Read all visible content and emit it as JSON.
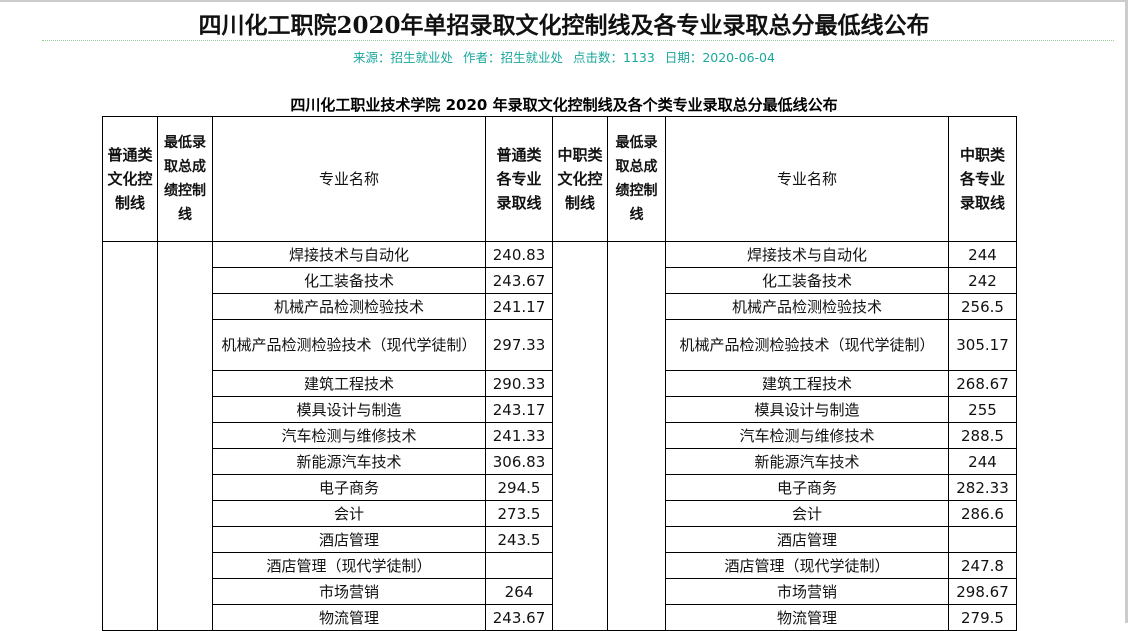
{
  "title": "四川化工职院2020年单招录取文化控制线及各专业录取总分最低线公布",
  "meta": {
    "source": "来源：招生就业处",
    "author": "作者：招生就业处",
    "clicks": "点击数：1133",
    "date": "日期：2020-06-04"
  },
  "subtitle": "四川化工职业技术学院 2020 年录取文化控制线及各个类专业录取总分最低线公布",
  "headers": [
    "普通类文化控制线",
    "最低录取总成绩控制线",
    "专业名称",
    "普通类各专业录取线",
    "中职类文化控制线",
    "最低录取总成绩控制线",
    "专业名称",
    "中职类各专业录取线"
  ],
  "rows": [
    {
      "major": "焊接技术与自动化",
      "general": "240.83",
      "vocational": "244"
    },
    {
      "major": "化工装备技术",
      "general": "243.67",
      "vocational": "242"
    },
    {
      "major": "机械产品检测检验技术",
      "general": "241.17",
      "vocational": "256.5"
    },
    {
      "major": "机械产品检测检验技术（现代学徒制）",
      "general": "297.33",
      "vocational": "305.17"
    },
    {
      "major": "建筑工程技术",
      "general": "290.33",
      "vocational": "268.67"
    },
    {
      "major": "模具设计与制造",
      "general": "243.17",
      "vocational": "255"
    },
    {
      "major": "汽车检测与维修技术",
      "general": "241.33",
      "vocational": "288.5"
    },
    {
      "major": "新能源汽车技术",
      "general": "306.83",
      "vocational": "244"
    },
    {
      "major": "电子商务",
      "general": "294.5",
      "vocational": "282.33"
    },
    {
      "major": "会计",
      "general": "273.5",
      "vocational": "286.6"
    },
    {
      "major": "酒店管理",
      "general": "243.5",
      "vocational": ""
    },
    {
      "major": "酒店管理（现代学徒制）",
      "general": "",
      "vocational": "247.8"
    },
    {
      "major": "市场营销",
      "general": "264",
      "vocational": "298.67"
    },
    {
      "major": "物流管理",
      "general": "243.67",
      "vocational": "279.5"
    }
  ]
}
